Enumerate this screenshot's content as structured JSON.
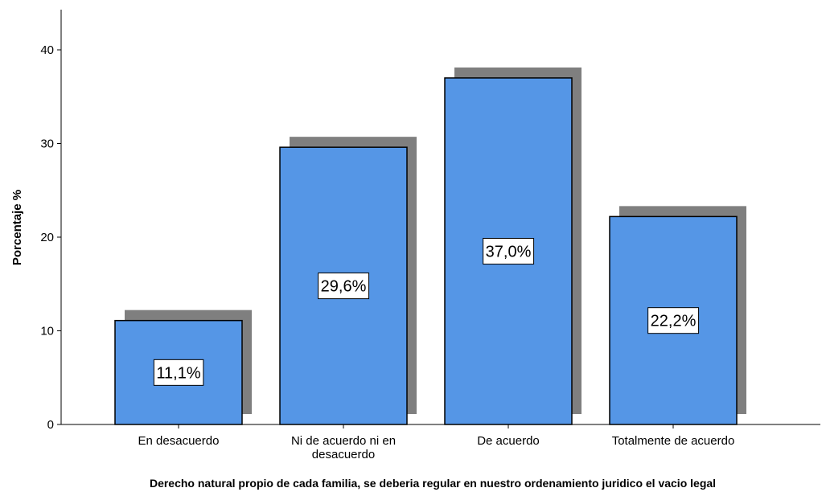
{
  "chart_data": {
    "type": "bar",
    "categories": [
      "En desacuerdo",
      "Ni de acuerdo ni en desacuerdo",
      "De acuerdo",
      "Totalmente de acuerdo"
    ],
    "category_label_lines": [
      [
        "En desacuerdo"
      ],
      [
        "Ni de acuerdo ni en",
        "desacuerdo"
      ],
      [
        "De acuerdo"
      ],
      [
        "Totalmente de acuerdo"
      ]
    ],
    "values": [
      11.1,
      29.6,
      37.0,
      22.2
    ],
    "data_labels": [
      "11,1%",
      "29,6%",
      "37,0%",
      "22,2%"
    ],
    "yticks": [
      0,
      10,
      20,
      30,
      40
    ],
    "ylim": [
      0,
      44
    ],
    "title": "",
    "xlabel": "Derecho natural propio de cada familia, se deberia regular en nuestro ordenamiento juridico el vacio legal",
    "ylabel": "Porcentaje %",
    "grid": false,
    "legend": "none",
    "colors": {
      "bar_fill": "#5596E6",
      "bar_stroke": "#000000",
      "shadow": "#7F7F7F",
      "axis": "#000000"
    }
  }
}
